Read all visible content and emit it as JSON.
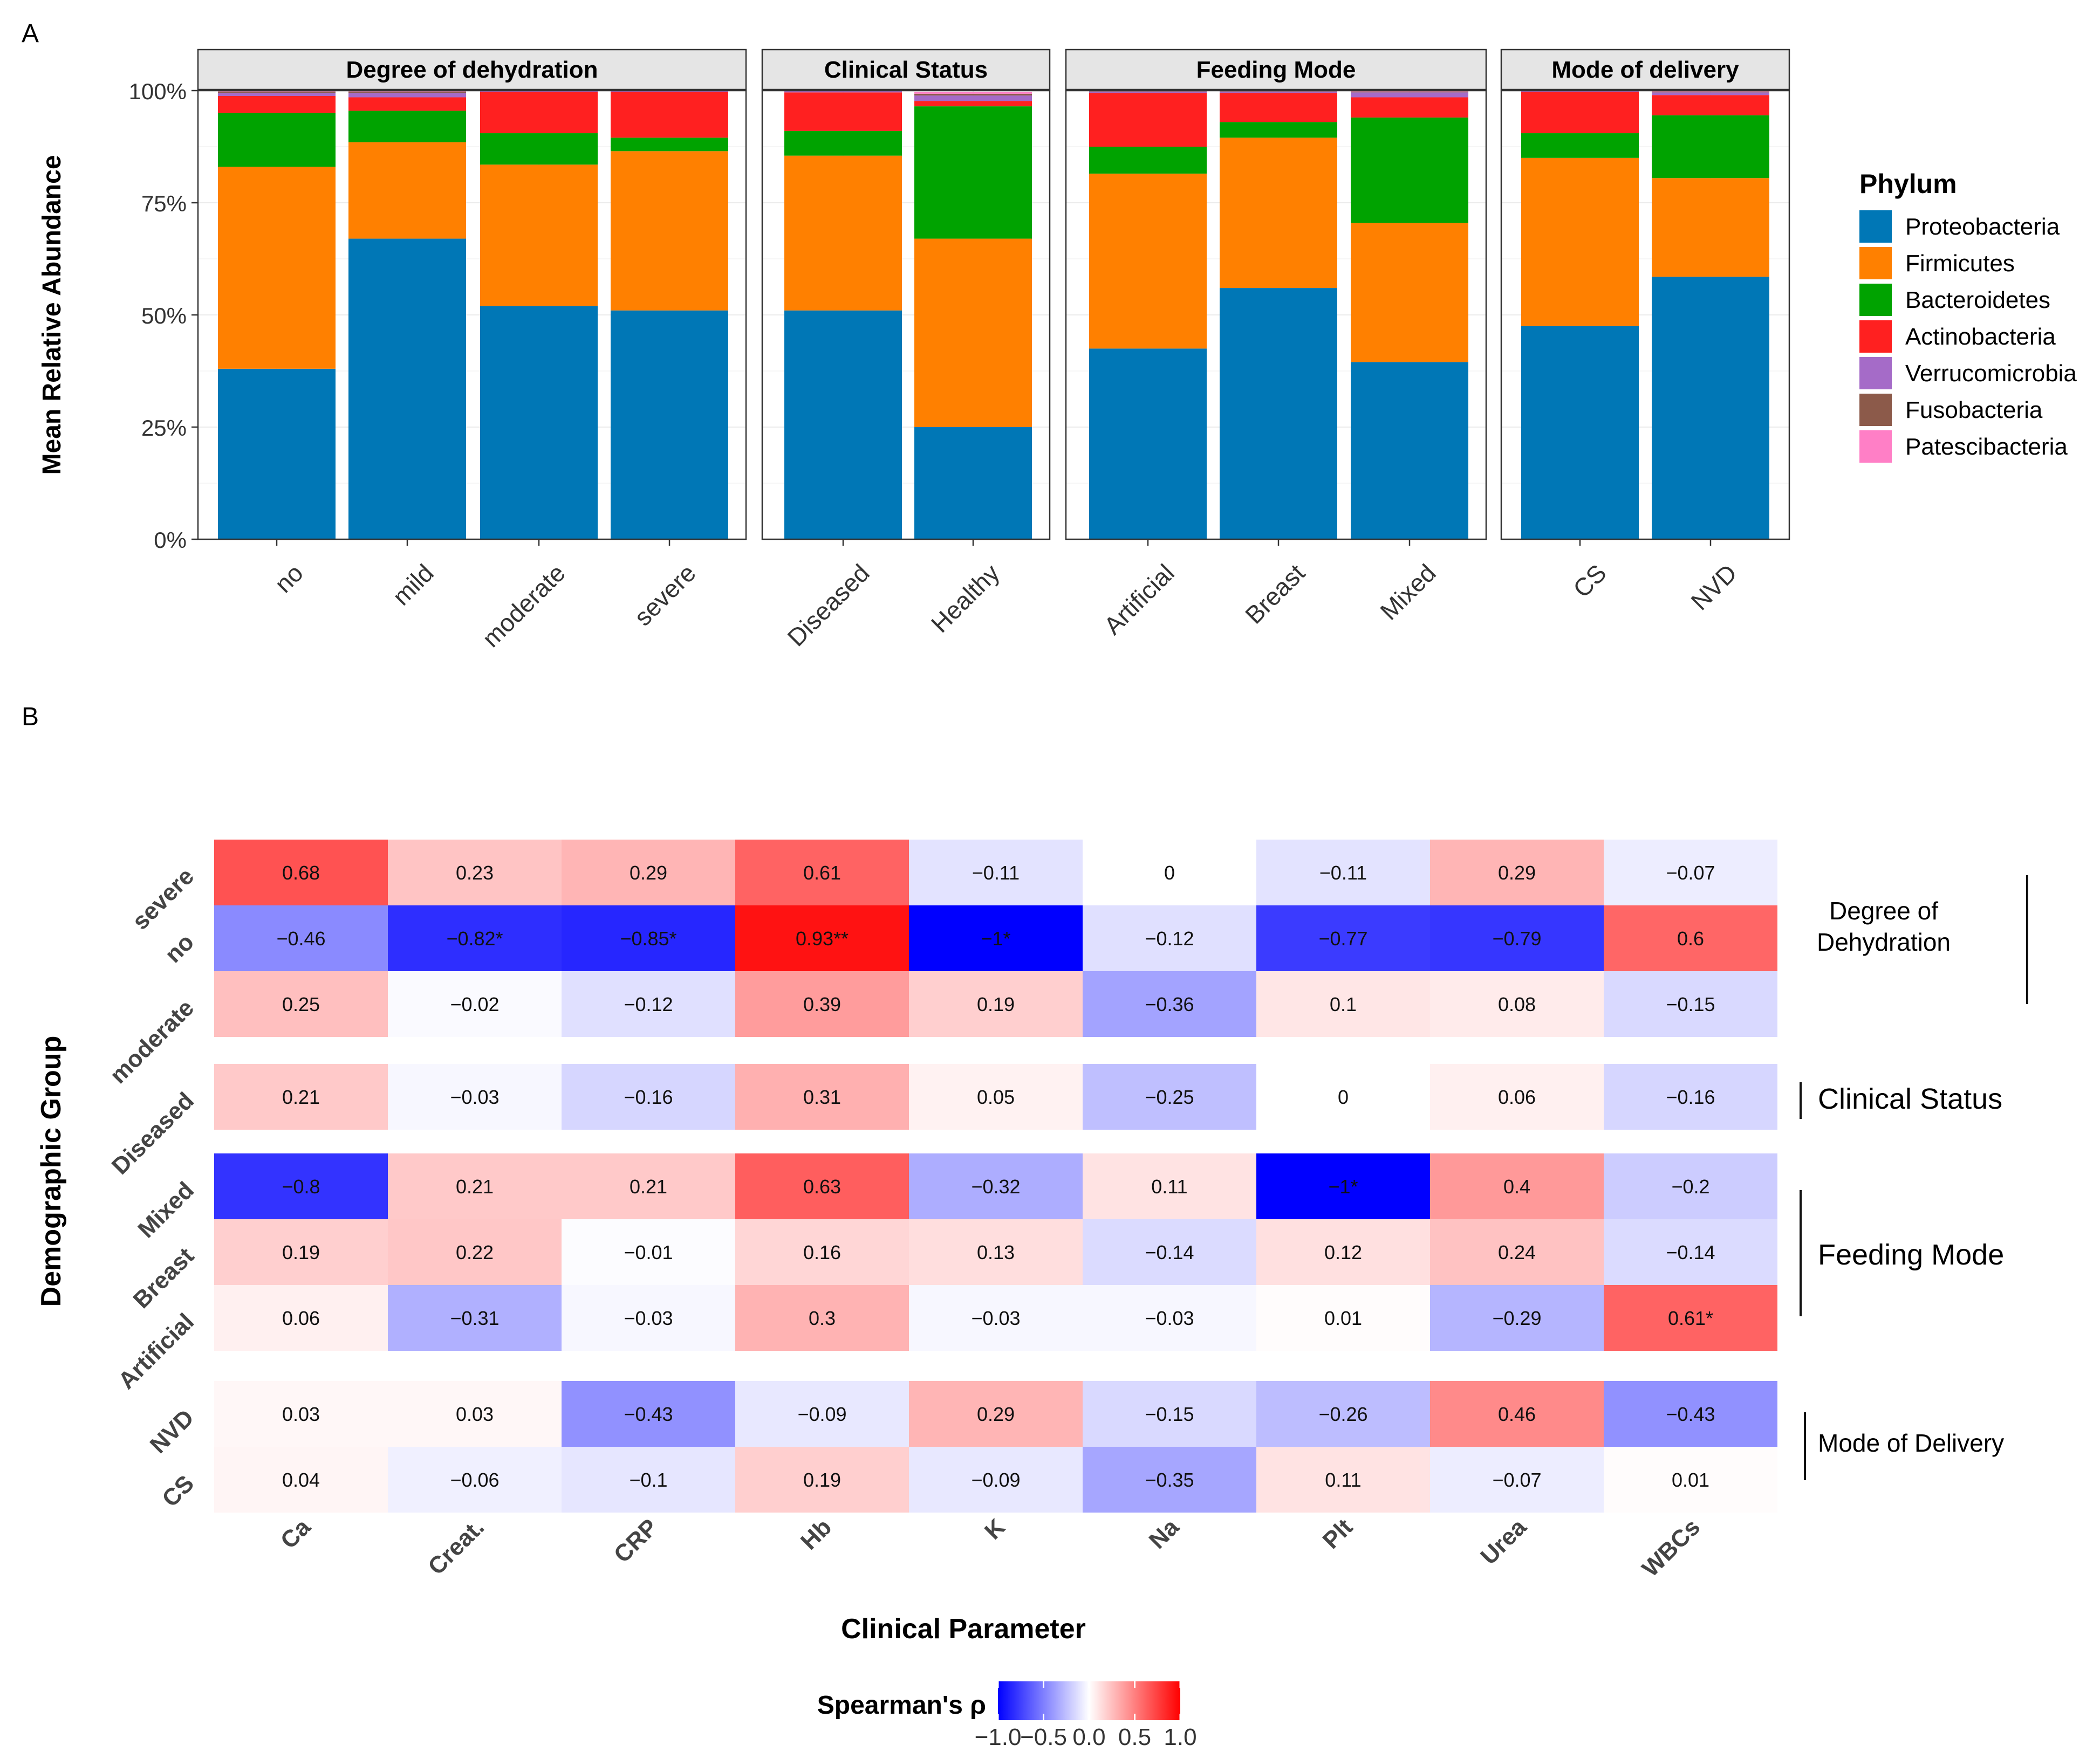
{
  "panel_labels": {
    "a": "A",
    "b": "B"
  },
  "colors": {
    "Proteobacteria": "#0077B6",
    "Firmicutes": "#FF8000",
    "Bacteroidetes": "#00A300",
    "Actinobacteria": "#FF2020",
    "Verrucomicrobia": "#A56BC8",
    "Fusobacteria": "#8C5A4A",
    "Patescibacteria": "#FF7FC6",
    "strip_bg": "#E5E5E5",
    "grid": "#EBEBEB",
    "heat_low": "#0000FF",
    "heat_mid": "#FFFFFF",
    "heat_high": "#FF0000"
  },
  "chart_data": [
    {
      "type": "bar",
      "stacked": true,
      "title": "",
      "xlabel": "",
      "ylabel": "Mean Relative Abundance",
      "ylim": [
        0,
        100
      ],
      "yticks": [
        "0%",
        "25%",
        "50%",
        "75%",
        "100%"
      ],
      "legend_title": "Phylum",
      "legend_position": "right",
      "phyla": [
        "Proteobacteria",
        "Firmicutes",
        "Bacteroidetes",
        "Actinobacteria",
        "Verrucomicrobia",
        "Fusobacteria",
        "Patescibacteria"
      ],
      "facets": [
        {
          "title": "Degree  of  dehydration",
          "categories": [
            "no",
            "mild",
            "moderate",
            "severe"
          ],
          "values": {
            "Proteobacteria": [
              38,
              67,
              52,
              51
            ],
            "Firmicutes": [
              45,
              21.5,
              31.5,
              35.5
            ],
            "Bacteroidetes": [
              12,
              7,
              7,
              3
            ],
            "Actinobacteria": [
              3.8,
              3,
              9.2,
              10.2
            ],
            "Verrucomicrobia": [
              0.7,
              1,
              0.2,
              0.2
            ],
            "Fusobacteria": [
              0.3,
              0.3,
              0.05,
              0.05
            ],
            "Patescibacteria": [
              0.2,
              0.2,
              0.05,
              0.05
            ]
          }
        },
        {
          "title": "Clinical Status",
          "categories": [
            "Diseased",
            "Healthy"
          ],
          "values": {
            "Proteobacteria": [
              51,
              25
            ],
            "Firmicutes": [
              34.5,
              42
            ],
            "Bacteroidetes": [
              5.5,
              29.5
            ],
            "Actinobacteria": [
              8.6,
              1.2
            ],
            "Verrucomicrobia": [
              0.3,
              1.2
            ],
            "Fusobacteria": [
              0.05,
              0.4
            ],
            "Patescibacteria": [
              0.05,
              0.4
            ]
          }
        },
        {
          "title": "Feeding Mode",
          "categories": [
            "Artificial",
            "Breast",
            "Mixed"
          ],
          "values": {
            "Proteobacteria": [
              42.5,
              56,
              39.5
            ],
            "Firmicutes": [
              39,
              33.5,
              31
            ],
            "Bacteroidetes": [
              6,
              3.5,
              23.5
            ],
            "Actinobacteria": [
              12,
              6.5,
              4.5
            ],
            "Verrucomicrobia": [
              0.3,
              0.3,
              1.1
            ],
            "Fusobacteria": [
              0.1,
              0.1,
              0.2
            ],
            "Patescibacteria": [
              0.1,
              0.1,
              0.2
            ]
          }
        },
        {
          "title": "Mode  of  delivery",
          "categories": [
            "CS",
            "NVD"
          ],
          "values": {
            "Proteobacteria": [
              47.5,
              58.5
            ],
            "Firmicutes": [
              37.5,
              22
            ],
            "Bacteroidetes": [
              5.5,
              14
            ],
            "Actinobacteria": [
              9.2,
              4.5
            ],
            "Verrucomicrobia": [
              0.2,
              0.6
            ],
            "Fusobacteria": [
              0.05,
              0.2
            ],
            "Patescibacteria": [
              0.05,
              0.2
            ]
          }
        }
      ]
    },
    {
      "type": "heatmap",
      "title": "",
      "xlabel": "Clinical Parameter",
      "ylabel": "Demographic Group",
      "colorbar_title": "Spearman's ρ",
      "colorbar_range": [
        -1,
        1
      ],
      "colorbar_ticks": [
        "−1.0",
        "−0.5",
        "0.0",
        "0.5",
        "1.0"
      ],
      "columns": [
        "Ca",
        "Creat.",
        "CRP",
        "Hb",
        "K",
        "Na",
        "Plt",
        "Urea",
        "WBCs"
      ],
      "groups": [
        {
          "label": "Degree of Dehydration",
          "label_lines": [
            "Degree of",
            "Dehydration"
          ],
          "rows": [
            {
              "name": "severe",
              "values": [
                0.68,
                0.23,
                0.29,
                0.61,
                -0.11,
                0,
                -0.11,
                0.29,
                -0.07
              ],
              "labels": [
                "0.68",
                "0.23",
                "0.29",
                "0.61",
                "−0.11",
                "0",
                "−0.11",
                "0.29",
                "−0.07"
              ]
            },
            {
              "name": "no",
              "values": [
                -0.46,
                -0.82,
                -0.85,
                0.93,
                -1,
                -0.12,
                -0.77,
                -0.79,
                0.6
              ],
              "labels": [
                "−0.46",
                "−0.82*",
                "−0.85*",
                "0.93**",
                "−1*",
                "−0.12",
                "−0.77",
                "−0.79",
                "0.6"
              ]
            },
            {
              "name": "moderate",
              "values": [
                0.25,
                -0.02,
                -0.12,
                0.39,
                0.19,
                -0.36,
                0.1,
                0.08,
                -0.15
              ],
              "labels": [
                "0.25",
                "−0.02",
                "−0.12",
                "0.39",
                "0.19",
                "−0.36",
                "0.1",
                "0.08",
                "−0.15"
              ]
            }
          ]
        },
        {
          "label": "Clinical Status",
          "label_lines": [
            "Clinical Status"
          ],
          "rows": [
            {
              "name": "Diseased",
              "values": [
                0.21,
                -0.03,
                -0.16,
                0.31,
                0.05,
                -0.25,
                0,
                0.06,
                -0.16
              ],
              "labels": [
                "0.21",
                "−0.03",
                "−0.16",
                "0.31",
                "0.05",
                "−0.25",
                "0",
                "0.06",
                "−0.16"
              ]
            }
          ]
        },
        {
          "label": "Feeding Mode",
          "label_lines": [
            "Feeding Mode"
          ],
          "rows": [
            {
              "name": "Mixed",
              "values": [
                -0.8,
                0.21,
                0.21,
                0.63,
                -0.32,
                0.11,
                -1,
                0.4,
                -0.2
              ],
              "labels": [
                "−0.8",
                "0.21",
                "0.21",
                "0.63",
                "−0.32",
                "0.11",
                "−1*",
                "0.4",
                "−0.2"
              ]
            },
            {
              "name": "Breast",
              "values": [
                0.19,
                0.22,
                -0.01,
                0.16,
                0.13,
                -0.14,
                0.12,
                0.24,
                -0.14
              ],
              "labels": [
                "0.19",
                "0.22",
                "−0.01",
                "0.16",
                "0.13",
                "−0.14",
                "0.12",
                "0.24",
                "−0.14"
              ]
            },
            {
              "name": "Artificial",
              "values": [
                0.06,
                -0.31,
                -0.03,
                0.3,
                -0.03,
                -0.03,
                0.01,
                -0.29,
                0.61
              ],
              "labels": [
                "0.06",
                "−0.31",
                "−0.03",
                "0.3",
                "−0.03",
                "−0.03",
                "0.01",
                "−0.29",
                "0.61*"
              ]
            }
          ]
        },
        {
          "label": "Mode of Delivery",
          "label_lines": [
            "Mode of Delivery"
          ],
          "rows": [
            {
              "name": "NVD",
              "values": [
                0.03,
                0.03,
                -0.43,
                -0.09,
                0.29,
                -0.15,
                -0.26,
                0.46,
                -0.43
              ],
              "labels": [
                "0.03",
                "0.03",
                "−0.43",
                "−0.09",
                "0.29",
                "−0.15",
                "−0.26",
                "0.46",
                "−0.43"
              ]
            },
            {
              "name": "CS",
              "values": [
                0.04,
                -0.06,
                -0.1,
                0.19,
                -0.09,
                -0.35,
                0.11,
                -0.07,
                0.01
              ],
              "labels": [
                "0.04",
                "−0.06",
                "−0.1",
                "0.19",
                "−0.09",
                "−0.35",
                "0.11",
                "−0.07",
                "0.01"
              ]
            }
          ]
        }
      ]
    }
  ]
}
